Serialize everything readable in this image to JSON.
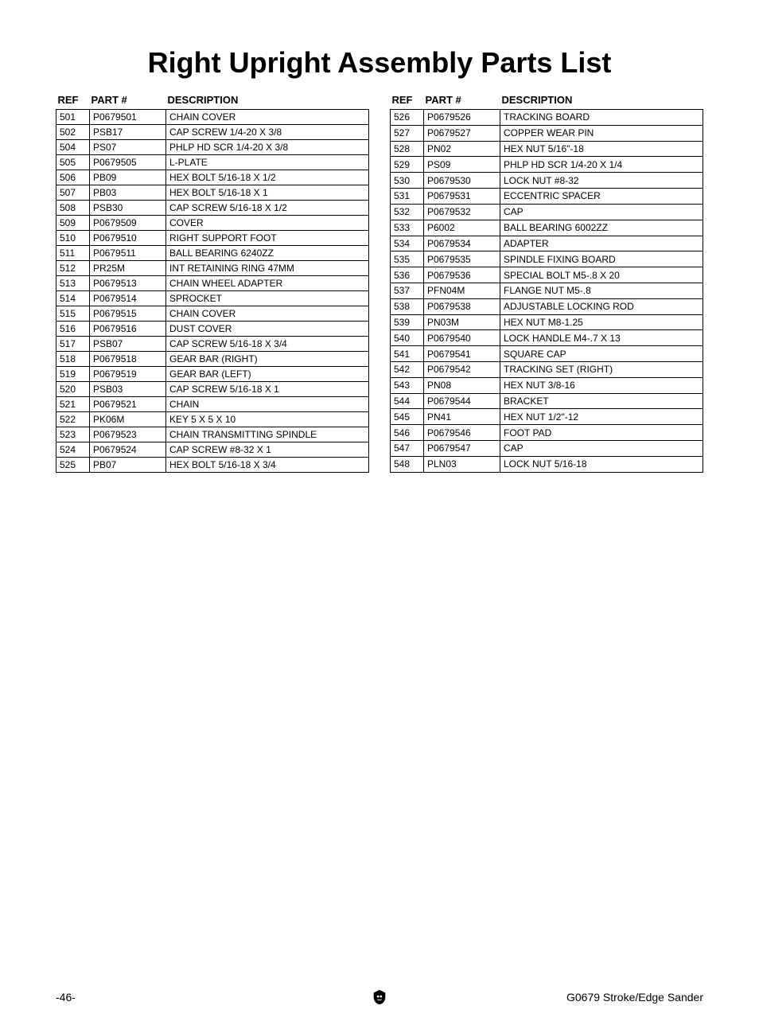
{
  "title": "Right Upright Assembly Parts List",
  "headers": {
    "ref": "REF",
    "part": "PART #",
    "desc": "DESCRIPTION"
  },
  "leftTable": [
    {
      "ref": "501",
      "part": "P0679501",
      "desc": "CHAIN COVER"
    },
    {
      "ref": "502",
      "part": "PSB17",
      "desc": "CAP SCREW 1/4-20 X 3/8"
    },
    {
      "ref": "504",
      "part": "PS07",
      "desc": "PHLP HD SCR 1/4-20 X 3/8"
    },
    {
      "ref": "505",
      "part": "P0679505",
      "desc": "L-PLATE"
    },
    {
      "ref": "506",
      "part": "PB09",
      "desc": "HEX BOLT 5/16-18 X 1/2"
    },
    {
      "ref": "507",
      "part": "PB03",
      "desc": "HEX BOLT 5/16-18 X 1"
    },
    {
      "ref": "508",
      "part": "PSB30",
      "desc": "CAP SCREW 5/16-18 X 1/2"
    },
    {
      "ref": "509",
      "part": "P0679509",
      "desc": "COVER"
    },
    {
      "ref": "510",
      "part": "P0679510",
      "desc": "RIGHT SUPPORT FOOT"
    },
    {
      "ref": "511",
      "part": "P0679511",
      "desc": "BALL BEARING 6240ZZ"
    },
    {
      "ref": "512",
      "part": "PR25M",
      "desc": "INT RETAINING RING 47MM"
    },
    {
      "ref": "513",
      "part": "P0679513",
      "desc": "CHAIN WHEEL ADAPTER"
    },
    {
      "ref": "514",
      "part": "P0679514",
      "desc": "SPROCKET"
    },
    {
      "ref": "515",
      "part": "P0679515",
      "desc": "CHAIN COVER"
    },
    {
      "ref": "516",
      "part": "P0679516",
      "desc": "DUST COVER"
    },
    {
      "ref": "517",
      "part": "PSB07",
      "desc": "CAP SCREW 5/16-18 X 3/4"
    },
    {
      "ref": "518",
      "part": "P0679518",
      "desc": "GEAR BAR (RIGHT)"
    },
    {
      "ref": "519",
      "part": "P0679519",
      "desc": "GEAR BAR (LEFT)"
    },
    {
      "ref": "520",
      "part": "PSB03",
      "desc": "CAP SCREW 5/16-18 X 1"
    },
    {
      "ref": "521",
      "part": "P0679521",
      "desc": "CHAIN"
    },
    {
      "ref": "522",
      "part": "PK06M",
      "desc": "KEY 5 X 5 X 10"
    },
    {
      "ref": "523",
      "part": "P0679523",
      "desc": "CHAIN TRANSMITTING SPINDLE"
    },
    {
      "ref": "524",
      "part": "P0679524",
      "desc": "CAP SCREW #8-32 X 1"
    },
    {
      "ref": "525",
      "part": "PB07",
      "desc": "HEX BOLT 5/16-18 X 3/4"
    }
  ],
  "rightTable": [
    {
      "ref": "526",
      "part": "P0679526",
      "desc": "TRACKING BOARD"
    },
    {
      "ref": "527",
      "part": "P0679527",
      "desc": "COPPER WEAR PIN"
    },
    {
      "ref": "528",
      "part": "PN02",
      "desc": "HEX NUT 5/16\"-18"
    },
    {
      "ref": "529",
      "part": "PS09",
      "desc": "PHLP HD SCR 1/4-20 X 1/4"
    },
    {
      "ref": "530",
      "part": "P0679530",
      "desc": "LOCK NUT #8-32"
    },
    {
      "ref": "531",
      "part": "P0679531",
      "desc": "ECCENTRIC SPACER"
    },
    {
      "ref": "532",
      "part": "P0679532",
      "desc": "CAP"
    },
    {
      "ref": "533",
      "part": "P6002",
      "desc": "BALL BEARING 6002ZZ"
    },
    {
      "ref": "534",
      "part": "P0679534",
      "desc": "ADAPTER"
    },
    {
      "ref": "535",
      "part": "P0679535",
      "desc": "SPINDLE FIXING BOARD"
    },
    {
      "ref": "536",
      "part": "P0679536",
      "desc": "SPECIAL BOLT M5-.8 X 20"
    },
    {
      "ref": "537",
      "part": "PFN04M",
      "desc": "FLANGE NUT M5-.8"
    },
    {
      "ref": "538",
      "part": "P0679538",
      "desc": "ADJUSTABLE LOCKING ROD"
    },
    {
      "ref": "539",
      "part": "PN03M",
      "desc": "HEX NUT M8-1.25"
    },
    {
      "ref": "540",
      "part": "P0679540",
      "desc": "LOCK HANDLE M4-.7 X 13"
    },
    {
      "ref": "541",
      "part": "P0679541",
      "desc": "SQUARE CAP"
    },
    {
      "ref": "542",
      "part": "P0679542",
      "desc": "TRACKING SET (RIGHT)"
    },
    {
      "ref": "543",
      "part": "PN08",
      "desc": "HEX NUT 3/8-16"
    },
    {
      "ref": "544",
      "part": "P0679544",
      "desc": "BRACKET"
    },
    {
      "ref": "545",
      "part": "PN41",
      "desc": "HEX NUT 1/2\"-12"
    },
    {
      "ref": "546",
      "part": "P0679546",
      "desc": "FOOT PAD"
    },
    {
      "ref": "547",
      "part": "P0679547",
      "desc": "CAP"
    },
    {
      "ref": "548",
      "part": "PLN03",
      "desc": "LOCK NUT 5/16-18"
    }
  ],
  "footer": {
    "pageNumber": "-46-",
    "productName": "G0679 Stroke/Edge Sander"
  },
  "colors": {
    "text": "#000000",
    "background": "#ffffff",
    "border": "#000000"
  }
}
